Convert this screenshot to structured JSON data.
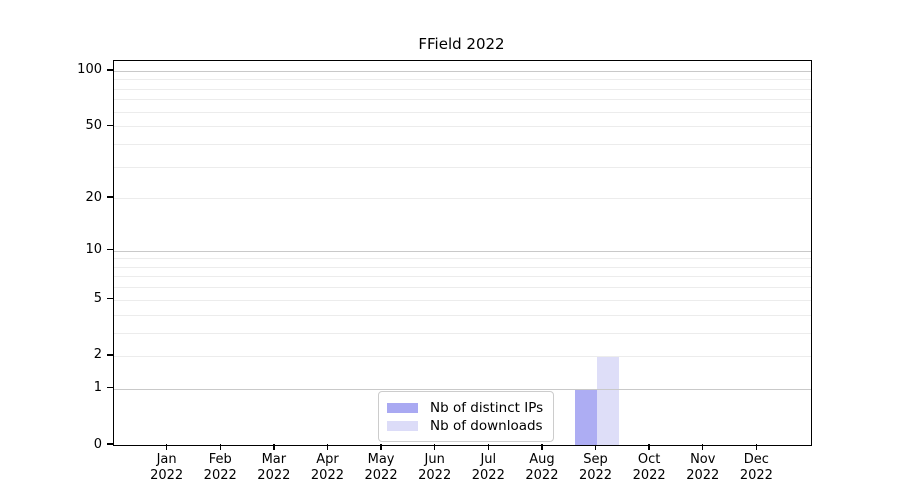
{
  "chart_data": {
    "type": "bar",
    "title": "FField 2022",
    "categories": [
      "Jan",
      "Feb",
      "Mar",
      "Apr",
      "May",
      "Jun",
      "Jul",
      "Aug",
      "Sep",
      "Oct",
      "Nov",
      "Dec"
    ],
    "category_year": "2022",
    "series": [
      {
        "name": "Nb of distinct IPs",
        "color": "#a9a9f2",
        "values": [
          0,
          0,
          0,
          0,
          0,
          0,
          0,
          0,
          1,
          0,
          0,
          0
        ]
      },
      {
        "name": "Nb of downloads",
        "color": "#dcdcf8",
        "values": [
          0,
          0,
          0,
          0,
          0,
          0,
          0,
          0,
          2,
          0,
          0,
          0
        ]
      }
    ],
    "y_axis": {
      "scale": "log1p",
      "tick_labels": [
        "0",
        "1",
        "2",
        "5",
        "10",
        "20",
        "50",
        "100"
      ],
      "tick_values": [
        0,
        1,
        2,
        5,
        10,
        20,
        50,
        100
      ],
      "top_value": 113,
      "major_gridline_values": [
        1,
        10,
        100
      ],
      "minor_gridline_values": [
        2,
        3,
        4,
        5,
        6,
        7,
        8,
        9,
        20,
        30,
        40,
        50,
        60,
        70,
        80,
        90
      ]
    },
    "legend_position": "lower center",
    "grid": "horizontal",
    "colors": {
      "major_gridline": "#c9c9c9",
      "minor_gridline": "#ececec",
      "spine": "#000000",
      "background": "#ffffff"
    }
  }
}
